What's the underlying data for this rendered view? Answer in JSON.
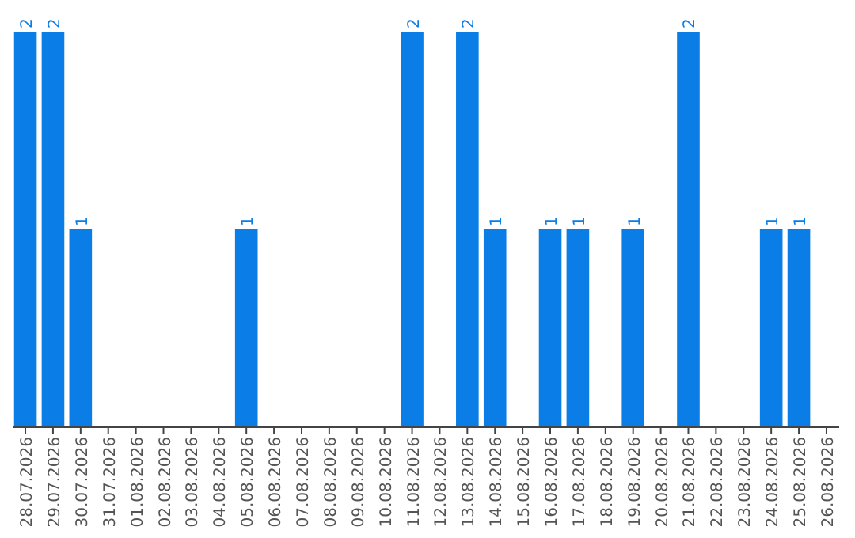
{
  "chart_data": {
    "type": "bar",
    "categories": [
      "28.07.2026",
      "29.07.2026",
      "30.07.2026",
      "31.07.2026",
      "01.08.2026",
      "02.08.2026",
      "03.08.2026",
      "04.08.2026",
      "05.08.2026",
      "06.08.2026",
      "07.08.2026",
      "08.08.2026",
      "09.08.2026",
      "10.08.2026",
      "11.08.2026",
      "12.08.2026",
      "13.08.2026",
      "14.08.2026",
      "15.08.2026",
      "16.08.2026",
      "17.08.2026",
      "18.08.2026",
      "19.08.2026",
      "20.08.2026",
      "21.08.2026",
      "22.08.2026",
      "23.08.2026",
      "24.08.2026",
      "25.08.2026",
      "26.08.2026"
    ],
    "values": [
      2,
      2,
      1,
      0,
      0,
      0,
      0,
      0,
      1,
      0,
      0,
      0,
      0,
      0,
      2,
      0,
      2,
      1,
      0,
      1,
      1,
      0,
      1,
      0,
      2,
      0,
      0,
      1,
      1,
      0
    ],
    "value_labels": [
      "2",
      "2",
      "1",
      null,
      null,
      null,
      null,
      null,
      "1",
      null,
      null,
      null,
      null,
      null,
      "2",
      null,
      "2",
      "1",
      null,
      "1",
      "1",
      null,
      "1",
      null,
      "2",
      null,
      null,
      "1",
      "1",
      null
    ],
    "color": "#0b7de6",
    "grid": false,
    "tick_labels": "x"
  }
}
